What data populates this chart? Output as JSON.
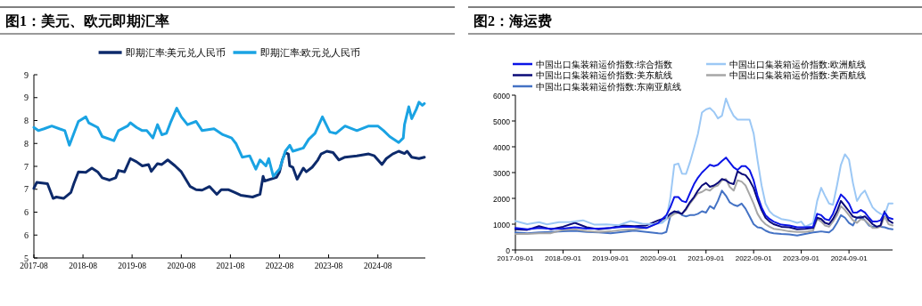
{
  "chart_data": [
    {
      "type": "line",
      "title": "图1：美元、欧元即期汇率",
      "legend": "top",
      "xlim": [
        "2017-08",
        "2025-07-20"
      ],
      "xticks": [
        "2017-08",
        "2018-08",
        "2019-08",
        "2020-08",
        "2021-08",
        "2022-08",
        "2023-08",
        "2024-08"
      ],
      "ylim": [
        5,
        9
      ],
      "yticks": [
        5,
        {
          "value": 5.5,
          "label": "6"
        },
        6,
        {
          "value": 6.5,
          "label": "7"
        },
        7,
        {
          "value": 7.5,
          "label": "8"
        },
        8,
        {
          "value": 8.5,
          "label": "9"
        },
        9
      ],
      "series": [
        {
          "name": "即期汇率:美元兑人民币",
          "color": "#0d2a6b",
          "x": [
            "2017-08-01",
            "2017-08-22",
            "2017-11-10",
            "2017-12-22",
            "2018-01-15",
            "2018-03-10",
            "2018-05-03",
            "2018-05-25",
            "2018-06-28",
            "2018-08-22",
            "2018-10-06",
            "2018-11-18",
            "2018-12-22",
            "2019-02-15",
            "2019-04-01",
            "2019-04-22",
            "2019-06-06",
            "2019-07-19",
            "2019-09-03",
            "2019-10-16",
            "2019-12-01",
            "2019-12-22",
            "2020-02-06",
            "2020-03-09",
            "2020-04-22",
            "2020-06-16",
            "2020-08-01",
            "2020-10-06",
            "2020-11-19",
            "2021-01-03",
            "2021-02-27",
            "2021-04-22",
            "2021-05-25",
            "2021-07-19",
            "2021-09-03",
            "2021-10-16",
            "2022-01-13",
            "2022-03-09",
            "2022-04-01",
            "2022-04-12",
            "2022-07-10",
            "2022-08-01",
            "2022-08-22",
            "2022-09-13",
            "2022-10-06",
            "2022-10-16",
            "2022-11-08",
            "2022-12-10",
            "2023-01-25",
            "2023-02-16",
            "2023-04-01",
            "2023-05-13",
            "2023-06-06",
            "2023-07-19",
            "2023-09-03",
            "2023-10-16",
            "2023-12-01",
            "2024-02-27",
            "2024-05-25",
            "2024-07-06",
            "2024-09-01",
            "2024-10-03",
            "2024-11-19",
            "2025-01-03",
            "2025-02-15",
            "2025-03-06",
            "2025-04-10",
            "2025-06-03",
            "2025-07-13"
          ],
          "values": [
            6.52,
            6.65,
            6.62,
            6.3,
            6.33,
            6.3,
            6.43,
            6.62,
            6.88,
            6.87,
            6.96,
            6.88,
            6.75,
            6.7,
            6.75,
            6.91,
            6.88,
            7.17,
            7.1,
            7.01,
            7.04,
            6.89,
            7.06,
            7.04,
            7.14,
            7.01,
            6.88,
            6.56,
            6.49,
            6.48,
            6.56,
            6.39,
            6.49,
            6.49,
            6.43,
            6.37,
            6.33,
            6.39,
            6.78,
            6.68,
            6.76,
            6.88,
            7.14,
            7.3,
            7.27,
            7.01,
            6.98,
            6.72,
            6.96,
            6.88,
            6.98,
            7.14,
            7.27,
            7.33,
            7.3,
            7.14,
            7.2,
            7.23,
            7.27,
            7.23,
            7.04,
            7.17,
            7.27,
            7.33,
            7.28,
            7.33,
            7.2,
            7.17,
            7.2
          ]
        },
        {
          "name": "即期汇率:欧元兑人民币",
          "color": "#1aa3e3",
          "x": [
            "2017-08-01",
            "2017-09-03",
            "2017-10-16",
            "2017-12-12",
            "2018-02-06",
            "2018-03-19",
            "2018-04-22",
            "2018-05-25",
            "2018-06-28",
            "2018-08-22",
            "2018-09-13",
            "2018-11-18",
            "2018-12-22",
            "2019-03-19",
            "2019-04-22",
            "2019-06-28",
            "2019-07-19",
            "2019-09-03",
            "2019-10-16",
            "2019-11-19",
            "2020-01-03",
            "2020-02-06",
            "2020-03-09",
            "2020-04-12",
            "2020-05-16",
            "2020-06-28",
            "2020-08-01",
            "2020-09-16",
            "2020-11-19",
            "2021-01-03",
            "2021-04-01",
            "2021-06-06",
            "2021-08-10",
            "2021-09-13",
            "2021-10-28",
            "2021-12-22",
            "2022-02-06",
            "2022-03-09",
            "2022-04-22",
            "2022-05-13",
            "2022-06-16",
            "2022-08-01",
            "2022-09-13",
            "2022-10-16",
            "2022-11-08",
            "2022-12-10",
            "2023-01-25",
            "2023-03-06",
            "2023-04-22",
            "2023-06-16",
            "2023-08-10",
            "2023-09-25",
            "2023-12-01",
            "2024-02-27",
            "2024-05-25",
            "2024-08-01",
            "2024-09-13",
            "2024-10-28",
            "2025-01-03",
            "2025-02-06",
            "2025-02-15",
            "2025-03-19",
            "2025-04-10",
            "2025-05-13",
            "2025-06-03",
            "2025-06-28",
            "2025-07-13"
          ],
          "values": [
            7.85,
            7.78,
            7.82,
            7.88,
            7.82,
            7.78,
            7.46,
            7.72,
            7.98,
            8.08,
            7.95,
            7.85,
            7.65,
            7.56,
            7.78,
            7.88,
            7.95,
            7.85,
            7.78,
            7.78,
            7.62,
            7.91,
            7.69,
            7.72,
            7.98,
            8.27,
            8.08,
            7.91,
            7.98,
            7.78,
            7.82,
            7.69,
            7.62,
            7.49,
            7.2,
            7.23,
            6.94,
            7.14,
            7.01,
            7.17,
            6.78,
            6.94,
            7.33,
            7.46,
            7.33,
            7.36,
            7.4,
            7.59,
            7.72,
            8.08,
            7.75,
            7.72,
            7.88,
            7.78,
            7.88,
            7.88,
            7.78,
            7.65,
            7.52,
            7.62,
            7.91,
            8.3,
            8.04,
            8.24,
            8.4,
            8.33,
            8.37
          ]
        }
      ]
    },
    {
      "type": "line",
      "title": "图2：海运费",
      "legend": "top",
      "xlim": [
        "2017-09-01",
        "2025-08-01"
      ],
      "xticks": [
        "2017-09-01",
        "2018-09-01",
        "2019-09-01",
        "2020-09-01",
        "2021-09-01",
        "2022-09-01",
        "2023-09-01",
        "2024-09-01"
      ],
      "ylim": [
        0,
        6000
      ],
      "yticks": [
        0,
        1000,
        2000,
        3000,
        4000,
        5000,
        6000
      ],
      "x": [
        "2017-09",
        "2017-12",
        "2018-03",
        "2018-06",
        "2018-09",
        "2018-12",
        "2019-03",
        "2019-06",
        "2019-09",
        "2019-12",
        "2020-03",
        "2020-06",
        "2020-09",
        "2020-10",
        "2020-11",
        "2020-12",
        "2021-01",
        "2021-02",
        "2021-03",
        "2021-04",
        "2021-05",
        "2021-06",
        "2021-07",
        "2021-08",
        "2021-09",
        "2021-10",
        "2021-11",
        "2021-12",
        "2022-01",
        "2022-02",
        "2022-03",
        "2022-04",
        "2022-05",
        "2022-06",
        "2022-07",
        "2022-08",
        "2022-09",
        "2022-10",
        "2022-11",
        "2022-12",
        "2023-01",
        "2023-02",
        "2023-04",
        "2023-06",
        "2023-08",
        "2023-10",
        "2023-12",
        "2024-01",
        "2024-02",
        "2024-03",
        "2024-04",
        "2024-05",
        "2024-06",
        "2024-07",
        "2024-08",
        "2024-09",
        "2024-10",
        "2024-11",
        "2024-12",
        "2025-01",
        "2025-02",
        "2025-03",
        "2025-04",
        "2025-05",
        "2025-06",
        "2025-07",
        "2025-08"
      ],
      "series": [
        {
          "name": "中国出口集装箱运价指数:综合指数",
          "color": "#0a14e6",
          "values": [
            850,
            800,
            850,
            820,
            830,
            880,
            830,
            830,
            850,
            900,
            900,
            850,
            1050,
            1200,
            1350,
            1650,
            2050,
            2050,
            1900,
            1850,
            2200,
            2550,
            2800,
            3000,
            3150,
            3300,
            3250,
            3300,
            3450,
            3580,
            3400,
            3200,
            3100,
            3250,
            3250,
            3100,
            2700,
            2100,
            1650,
            1350,
            1200,
            1100,
            980,
            950,
            880,
            880,
            900,
            1400,
            1350,
            1200,
            1150,
            1400,
            1800,
            2150,
            2000,
            1800,
            1450,
            1450,
            1550,
            1450,
            1250,
            1100,
            1100,
            1150,
            1450,
            1250,
            1200
          ]
        },
        {
          "name": "中国出口集装箱运价指数:欧洲航线",
          "color": "#9cc8f5",
          "x": [
            "2017-09",
            "2017-12",
            "2018-03",
            "2018-05",
            "2018-08",
            "2018-11",
            "2019-02",
            "2019-05",
            "2019-08",
            "2019-11",
            "2020-02",
            "2020-05",
            "2020-08",
            "2020-10",
            "2020-11",
            "2020-12",
            "2021-01",
            "2021-02",
            "2021-03",
            "2021-04",
            "2021-05",
            "2021-06",
            "2021-07",
            "2021-08",
            "2021-09",
            "2021-10",
            "2021-11",
            "2021-12",
            "2022-01",
            "2022-02",
            "2022-03",
            "2022-04",
            "2022-05",
            "2022-06",
            "2022-07",
            "2022-08",
            "2022-09",
            "2022-10",
            "2022-11",
            "2022-12",
            "2023-01",
            "2023-02",
            "2023-04",
            "2023-06",
            "2023-08",
            "2023-09",
            "2023-10",
            "2023-12",
            "2024-01",
            "2024-02",
            "2024-03",
            "2024-04",
            "2024-05",
            "2024-06",
            "2024-07",
            "2024-08",
            "2024-09",
            "2024-10",
            "2024-11",
            "2024-12",
            "2025-01",
            "2025-02",
            "2025-03",
            "2025-04",
            "2025-05",
            "2025-06",
            "2025-07",
            "2025-08"
          ],
          "values": [
            1120,
            1000,
            1080,
            990,
            1080,
            1090,
            1150,
            980,
            990,
            960,
            1120,
            1020,
            1000,
            1050,
            1200,
            2000,
            3300,
            3350,
            2960,
            2950,
            3400,
            3950,
            4500,
            5330,
            5450,
            5500,
            5350,
            5100,
            5200,
            5870,
            5500,
            5200,
            5050,
            5050,
            5050,
            5050,
            4520,
            3480,
            2500,
            1800,
            1500,
            1350,
            1200,
            1150,
            1050,
            1100,
            900,
            1050,
            1900,
            2410,
            2100,
            1800,
            1750,
            2500,
            3300,
            3710,
            3500,
            2600,
            1900,
            2150,
            2300,
            1950,
            1650,
            1500,
            1400,
            1350,
            1800,
            1800
          ]
        },
        {
          "name": "中国出口集装箱运价指数:美东航线",
          "color": "#0a0a78",
          "values": [
            800,
            780,
            920,
            800,
            900,
            1050,
            880,
            800,
            850,
            950,
            920,
            950,
            1150,
            1200,
            1250,
            1400,
            1500,
            1450,
            1400,
            1600,
            1850,
            2050,
            2300,
            2500,
            2600,
            2450,
            2500,
            2600,
            2750,
            2700,
            2600,
            2550,
            3050,
            2950,
            2900,
            2700,
            2400,
            1950,
            1550,
            1250,
            1100,
            1000,
            900,
            880,
            800,
            820,
            850,
            1250,
            1200,
            1050,
            1000,
            1200,
            1500,
            1900,
            1700,
            1500,
            1300,
            1250,
            1250,
            1300,
            1150,
            1000,
            900,
            950,
            1500,
            1150,
            1050
          ]
        },
        {
          "name": "中国出口集装箱运价指数:美西航线",
          "color": "#a6a6a6",
          "values": [
            620,
            620,
            650,
            650,
            780,
            800,
            730,
            700,
            720,
            780,
            800,
            850,
            1050,
            1100,
            1200,
            1300,
            1400,
            1450,
            1400,
            1550,
            1800,
            2000,
            2200,
            2250,
            2350,
            2300,
            2450,
            2500,
            2700,
            2750,
            2450,
            2300,
            2700,
            2650,
            2500,
            2150,
            1800,
            1400,
            1150,
            1000,
            900,
            820,
            780,
            720,
            700,
            700,
            750,
            1200,
            1100,
            950,
            900,
            1100,
            1350,
            1700,
            1550,
            1350,
            1150,
            1050,
            1200,
            1150,
            1000,
            850,
            850,
            900,
            1300,
            1000,
            950
          ]
        },
        {
          "name": "中国出口集装箱运价指数:东南亚航线",
          "color": "#4472c4",
          "values": [
            680,
            650,
            680,
            700,
            720,
            740,
            700,
            680,
            650,
            700,
            750,
            700,
            650,
            640,
            700,
            1300,
            1450,
            1500,
            1350,
            1300,
            1350,
            1350,
            1400,
            1500,
            1450,
            1700,
            1600,
            1900,
            2300,
            2100,
            1850,
            1750,
            1700,
            1800,
            1600,
            1300,
            1000,
            880,
            850,
            750,
            680,
            650,
            620,
            600,
            560,
            620,
            680,
            700,
            720,
            700,
            680,
            800,
            1050,
            1350,
            1250,
            1050,
            950,
            1250,
            1300,
            1150,
            950,
            900,
            900,
            900,
            880,
            830,
            800
          ]
        }
      ]
    }
  ]
}
